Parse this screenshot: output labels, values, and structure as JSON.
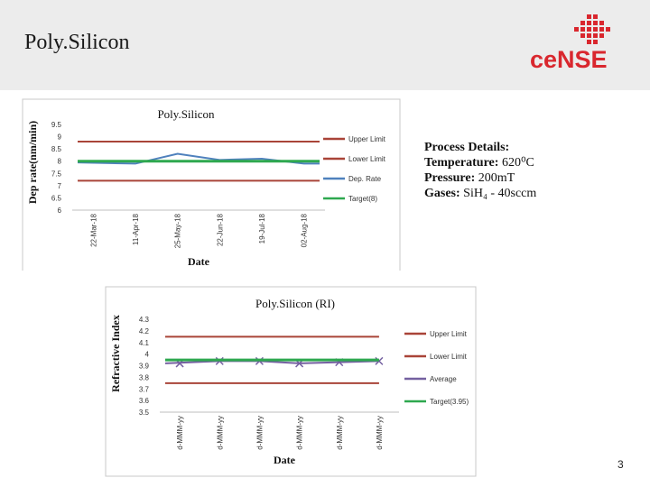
{
  "slide": {
    "title": "Poly.Silicon",
    "logo_text": "ceNSE",
    "page_number": "3"
  },
  "process_details": {
    "heading": "Process Details:",
    "lines": [
      {
        "label": "Temperature:",
        "value": "620⁰C"
      },
      {
        "label": "Pressure:",
        "value": "200mT"
      },
      {
        "label": "Gases:",
        "value": "SiH₄ - 40sccm"
      }
    ]
  },
  "colors": {
    "upper_limit": "#a94438",
    "lower_limit": "#a94438",
    "dep_rate": "#4f81bd",
    "average": "#7460a0",
    "target": "#2ea84f",
    "logo_red": "#d9272e",
    "logo_navy": "#1f3a68"
  },
  "chart_data": [
    {
      "type": "line",
      "title": "Poly.Silicon",
      "xlabel": "Date",
      "ylabel": "Dep rate(nm/min)",
      "x": [
        "22-Mar-18",
        "11-Apr-18",
        "25-May-18",
        "22-Jun-18",
        "19-Jul-18",
        "02-Aug-18"
      ],
      "ylim": [
        6,
        9.5
      ],
      "yticks": [
        "9.5",
        "9",
        "8.5",
        "8",
        "7.5",
        "7",
        "6.5",
        "6"
      ],
      "legend_position": "right",
      "series": [
        {
          "name": "Upper Limit",
          "color": "#a94438",
          "values": [
            8.8,
            8.8,
            8.8,
            8.8,
            8.8,
            8.8
          ]
        },
        {
          "name": "Lower Limit",
          "color": "#a94438",
          "values": [
            7.2,
            7.2,
            7.2,
            7.2,
            7.2,
            7.2
          ]
        },
        {
          "name": "Dep. Rate",
          "color": "#4f81bd",
          "values": [
            7.95,
            7.9,
            8.3,
            8.05,
            8.1,
            7.9
          ]
        },
        {
          "name": "Target(8)",
          "color": "#2ea84f",
          "values": [
            8,
            8,
            8,
            8,
            8,
            8
          ]
        }
      ]
    },
    {
      "type": "line",
      "title": "Poly.Silicon (RI)",
      "xlabel": "Date",
      "ylabel": "Refractive Index",
      "x": [
        "d-MMM-yy",
        "d-MMM-yy",
        "d-MMM-yy",
        "d-MMM-yy",
        "d-MMM-yy",
        "d-MMM-yy"
      ],
      "ylim": [
        3.5,
        4.3
      ],
      "yticks": [
        "4.3",
        "4.2",
        "4.1",
        "4",
        "3.9",
        "3.8",
        "3.7",
        "3.6",
        "3.5"
      ],
      "legend_position": "right",
      "series": [
        {
          "name": "Upper Limit",
          "color": "#a94438",
          "values": [
            4.15,
            4.15,
            4.15,
            4.15,
            4.15,
            4.15
          ]
        },
        {
          "name": "Lower Limit",
          "color": "#a94438",
          "values": [
            3.75,
            3.75,
            3.75,
            3.75,
            3.75,
            3.75
          ]
        },
        {
          "name": "Average",
          "color": "#7460a0",
          "values": [
            3.92,
            3.94,
            3.94,
            3.92,
            3.93,
            3.94
          ]
        },
        {
          "name": "Target(3.95)",
          "color": "#2ea84f",
          "values": [
            3.95,
            3.95,
            3.95,
            3.95,
            3.95,
            3.95
          ]
        }
      ]
    }
  ]
}
